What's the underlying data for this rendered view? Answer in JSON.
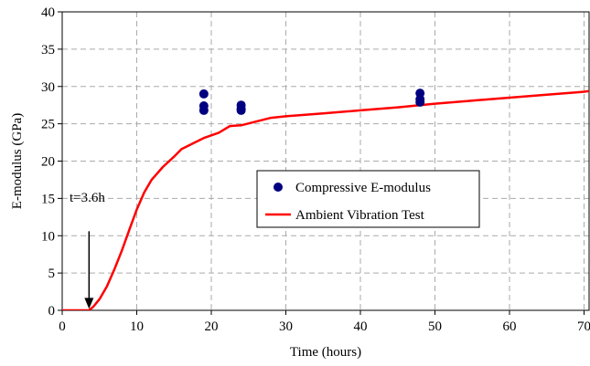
{
  "chart_data": {
    "type": "line",
    "title": "",
    "xlabel": "Time (hours)",
    "ylabel": "E-modulus (GPa)",
    "xlim": [
      0,
      70
    ],
    "ylim": [
      0,
      40
    ],
    "x_ticks": [
      0,
      10,
      20,
      30,
      40,
      50,
      60,
      70
    ],
    "y_ticks": [
      0,
      5,
      10,
      15,
      20,
      25,
      30,
      35,
      40
    ],
    "grid": true,
    "legend_position": "center-right",
    "series": [
      {
        "name": "Compressive E-modulus",
        "kind": "scatter",
        "color": "#000080",
        "points": [
          [
            19,
            29.0
          ],
          [
            19,
            27.4
          ],
          [
            19,
            26.8
          ],
          [
            24,
            27.5
          ],
          [
            24,
            27.0
          ],
          [
            24,
            26.8
          ],
          [
            48,
            29.1
          ],
          [
            48,
            28.3
          ],
          [
            48,
            27.9
          ]
        ]
      },
      {
        "name": "Ambient Vibration Test",
        "kind": "line",
        "color": "#ff0000",
        "points": [
          [
            0,
            0
          ],
          [
            3.6,
            0
          ],
          [
            4.2,
            0.5
          ],
          [
            5.0,
            1.5
          ],
          [
            6.0,
            3.2
          ],
          [
            7.0,
            5.5
          ],
          [
            8.0,
            8.0
          ],
          [
            9.0,
            10.8
          ],
          [
            10.0,
            13.5
          ],
          [
            11.0,
            15.8
          ],
          [
            12.0,
            17.5
          ],
          [
            13.5,
            19.2
          ],
          [
            15.0,
            20.6
          ],
          [
            16.0,
            21.6
          ],
          [
            18.0,
            22.6
          ],
          [
            19.0,
            23.1
          ],
          [
            21.0,
            23.8
          ],
          [
            22.5,
            24.7
          ],
          [
            24.0,
            24.8
          ],
          [
            26.0,
            25.3
          ],
          [
            28.0,
            25.8
          ],
          [
            30.0,
            26.0
          ],
          [
            35.0,
            26.4
          ],
          [
            40.0,
            26.8
          ],
          [
            45.0,
            27.2
          ],
          [
            50.0,
            27.7
          ],
          [
            55.0,
            28.1
          ],
          [
            60.0,
            28.5
          ],
          [
            65.0,
            28.9
          ],
          [
            70.0,
            29.3
          ],
          [
            71.5,
            29.5
          ]
        ]
      }
    ],
    "annotations": [
      {
        "text": "t=3.6h",
        "arrow_x": 3.6,
        "arrow_from_y": 10.6,
        "arrow_to_y": 0.2
      }
    ]
  }
}
